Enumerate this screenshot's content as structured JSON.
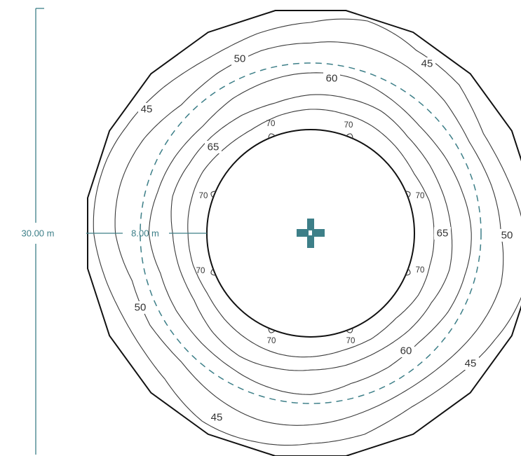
{
  "colors": {
    "accent": "#3d7f88",
    "contour": "#3a3a3a",
    "boundary": "#111111"
  },
  "dimensions": {
    "diameter_label": "30.00 m",
    "radius_label": "8.00 m"
  },
  "fixture": {
    "icon": "luminaire-cross-icon"
  },
  "contours": [
    {
      "level": "45",
      "labels": [
        "45",
        "45",
        "45",
        "45"
      ]
    },
    {
      "level": "50",
      "labels": [
        "50",
        "50",
        "50"
      ]
    },
    {
      "level": "60",
      "labels": [
        "60",
        "60"
      ]
    },
    {
      "level": "65",
      "labels": [
        "65",
        "65"
      ]
    },
    {
      "level": "70",
      "labels": [
        "70",
        "70",
        "70",
        "70",
        "70",
        "70",
        "70",
        "70"
      ]
    }
  ]
}
